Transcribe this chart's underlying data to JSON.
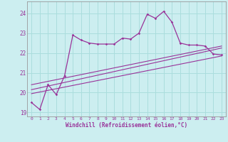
{
  "xlabel": "Windchill (Refroidissement éolien,°C)",
  "bg_color": "#cceef0",
  "grid_color": "#aadddd",
  "line_color": "#993399",
  "xlim": [
    -0.5,
    23.5
  ],
  "ylim": [
    18.8,
    24.6
  ],
  "yticks": [
    19,
    20,
    21,
    22,
    23,
    24
  ],
  "xticks": [
    0,
    1,
    2,
    3,
    4,
    5,
    6,
    7,
    8,
    9,
    10,
    11,
    12,
    13,
    14,
    15,
    16,
    17,
    18,
    19,
    20,
    21,
    22,
    23
  ],
  "main_x": [
    0,
    1,
    2,
    3,
    4,
    5,
    6,
    7,
    8,
    9,
    10,
    11,
    12,
    13,
    14,
    15,
    16,
    17,
    18,
    19,
    20,
    21,
    22,
    23
  ],
  "main_y": [
    19.5,
    19.15,
    20.4,
    19.9,
    20.85,
    22.9,
    22.65,
    22.5,
    22.45,
    22.45,
    22.45,
    22.75,
    22.7,
    23.0,
    23.95,
    23.75,
    24.1,
    23.55,
    22.5,
    22.4,
    22.4,
    22.35,
    21.95,
    21.9
  ],
  "line1_x": [
    0,
    23
  ],
  "line1_y": [
    20.4,
    22.35
  ],
  "line2_x": [
    0,
    23
  ],
  "line2_y": [
    20.15,
    22.25
  ],
  "line3_x": [
    0,
    23
  ],
  "line3_y": [
    19.95,
    21.85
  ]
}
